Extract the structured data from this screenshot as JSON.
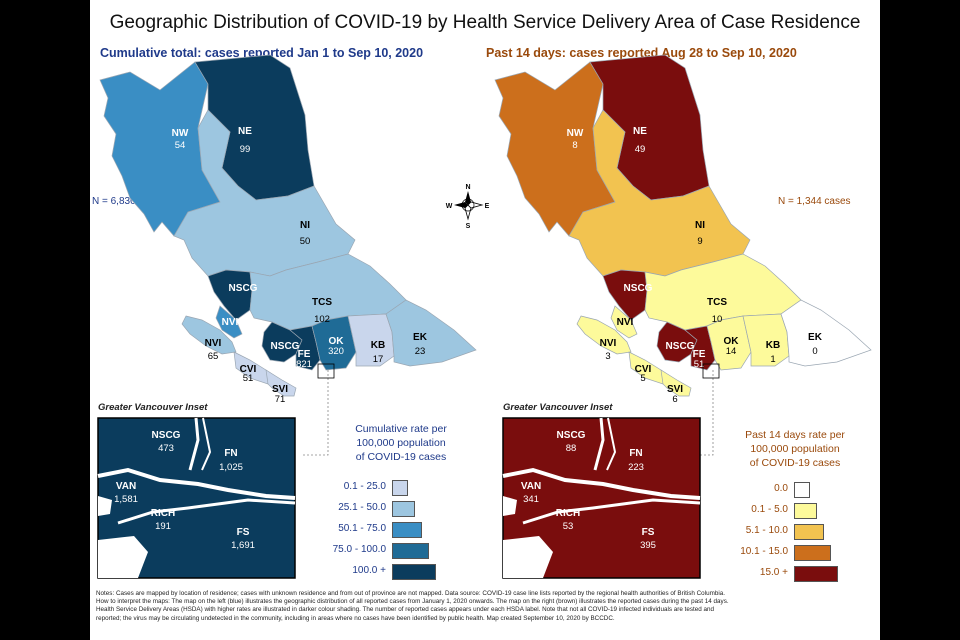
{
  "title": "Geographic Distribution of COVID-19 by Health Service Delivery Area of Case Residence",
  "left_panel": {
    "subtitle": "Cumulative total: cases reported Jan 1 to Sep 10, 2020",
    "n_label": "N = 6,830 cases",
    "regions": [
      {
        "code": "NW",
        "value": "54",
        "color": "#3a8ec4"
      },
      {
        "code": "NE",
        "value": "99",
        "color": "#0b3c5d"
      },
      {
        "code": "NI",
        "value": "50",
        "color": "#9dc6e0"
      },
      {
        "code": "NSCG",
        "value": "",
        "color": "#0b3c5d"
      },
      {
        "code": "NVI",
        "value": "",
        "color": "#3a8ec4"
      },
      {
        "code": "TCS",
        "value": "102",
        "color": "#9dc6e0"
      },
      {
        "code": "NVI",
        "value": "65",
        "color": "#9dc6e0"
      },
      {
        "code": "NSCG",
        "value": "",
        "color": "#0b3c5d"
      },
      {
        "code": "FE",
        "value": "821",
        "color": "#0b3c5d"
      },
      {
        "code": "OK",
        "value": "320",
        "color": "#1f6b96"
      },
      {
        "code": "KB",
        "value": "17",
        "color": "#c9d6ec"
      },
      {
        "code": "EK",
        "value": "23",
        "color": "#9dc6e0"
      },
      {
        "code": "CVI",
        "value": "51",
        "color": "#c9d6ec"
      },
      {
        "code": "SVI",
        "value": "71",
        "color": "#c9d6ec"
      }
    ],
    "inset_title": "Greater Vancouver Inset",
    "inset_regions": [
      {
        "code": "NSCG",
        "value": "473"
      },
      {
        "code": "FN",
        "value": "1,025"
      },
      {
        "code": "VAN",
        "value": "1,581"
      },
      {
        "code": "RICH",
        "value": "191"
      },
      {
        "code": "FS",
        "value": "1,691"
      }
    ],
    "legend_title_lines": [
      "Cumulative rate per",
      "100,000 population",
      "of COVID-19 cases"
    ],
    "legend": [
      {
        "label": "0.1 - 25.0",
        "color": "#c9d6ec"
      },
      {
        "label": "25.1 - 50.0",
        "color": "#9dc6e0"
      },
      {
        "label": "50.1 - 75.0",
        "color": "#3a8ec4"
      },
      {
        "label": "75.0 - 100.0",
        "color": "#1f6b96"
      },
      {
        "label": "100.0 +",
        "color": "#0b3c5d"
      }
    ]
  },
  "right_panel": {
    "subtitle": "Past 14 days: cases reported Aug 28 to Sep 10, 2020",
    "n_label": "N = 1,344 cases",
    "regions": [
      {
        "code": "NW",
        "value": "8",
        "color": "#cc6f1c"
      },
      {
        "code": "NE",
        "value": "49",
        "color": "#7a0d0d"
      },
      {
        "code": "NI",
        "value": "9",
        "color": "#f2c350"
      },
      {
        "code": "NSCG",
        "value": "",
        "color": "#7a0d0d"
      },
      {
        "code": "NVI",
        "value": "",
        "color": "#fdfa9b"
      },
      {
        "code": "TCS",
        "value": "10",
        "color": "#fdfa9b"
      },
      {
        "code": "NVI",
        "value": "3",
        "color": "#fdfa9b"
      },
      {
        "code": "NSCG",
        "value": "",
        "color": "#7a0d0d"
      },
      {
        "code": "FE",
        "value": "51",
        "color": "#7a0d0d"
      },
      {
        "code": "OK",
        "value": "14",
        "color": "#fdfa9b"
      },
      {
        "code": "KB",
        "value": "1",
        "color": "#fdfa9b"
      },
      {
        "code": "EK",
        "value": "0",
        "color": "#ffffff"
      },
      {
        "code": "CVI",
        "value": "5",
        "color": "#fdfa9b"
      },
      {
        "code": "SVI",
        "value": "6",
        "color": "#fdfa9b"
      }
    ],
    "inset_title": "Greater Vancouver Inset",
    "inset_regions": [
      {
        "code": "NSCG",
        "value": "88"
      },
      {
        "code": "FN",
        "value": "223"
      },
      {
        "code": "VAN",
        "value": "341"
      },
      {
        "code": "RICH",
        "value": "53"
      },
      {
        "code": "FS",
        "value": "395"
      }
    ],
    "legend_title_lines": [
      "Past 14 days rate per",
      "100,000 population",
      "of COVID-19 cases"
    ],
    "legend": [
      {
        "label": "0.0",
        "color": "#ffffff"
      },
      {
        "label": "0.1 - 5.0",
        "color": "#fdfa9b"
      },
      {
        "label": "5.1 - 10.0",
        "color": "#f2c350"
      },
      {
        "label": "10.1 - 15.0",
        "color": "#cc6f1c"
      },
      {
        "label": "15.0 +",
        "color": "#7a0d0d"
      }
    ]
  },
  "compass": {
    "n": "N",
    "e": "E",
    "s": "S",
    "w": "W"
  },
  "notes": [
    "Notes: Cases are mapped by location of residence; cases with unknown residence and from out of province are not mapped. Data source: COVID-19 case line lists reported by the regional health authorities of British Columbia.",
    "How to interpret the maps: The map on the left (blue) illustrates the geographic distribution of all reported cases from January 1, 2020 onwards. The map on the right (brown) illustrates the reported cases during the past 14 days.",
    "Health Service Delivery Areas (HSDA) with higher rates are illustrated in darker colour shading. The number of reported cases appears under each HSDA label. Note that not all COVID-19 infected individuals are tested and",
    "reported; the virus may be circulating undetected in the community, including in areas where no cases have been identified by public health. Map created September 10, 2020 by BCCDC."
  ]
}
